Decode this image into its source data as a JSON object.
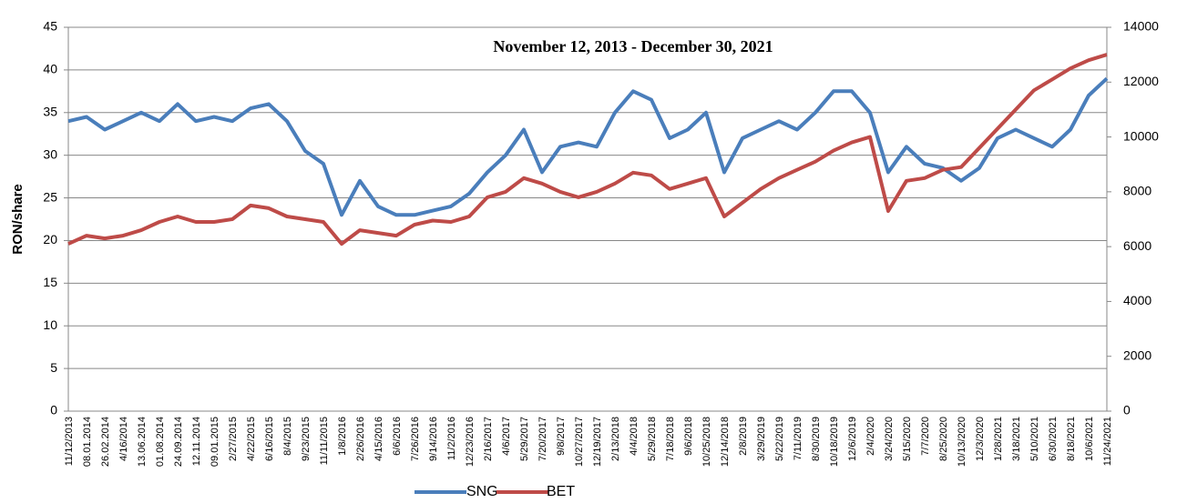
{
  "chart_data": {
    "type": "line",
    "title": "November 12, 2013 - December 30, 2021",
    "y_label": "RON/share",
    "categories": [
      "11/12/2013",
      "08.01.2014",
      "26.02.2014",
      "4/16/2014",
      "13.06.2014",
      "01.08.2014",
      "24.09.2014",
      "12.11.2014",
      "09.01.2015",
      "2/27/2015",
      "4/22/2015",
      "6/16/2015",
      "8/4/2015",
      "9/23/2015",
      "11/11/2015",
      "1/8/2016",
      "2/26/2016",
      "4/15/2016",
      "6/6/2016",
      "7/26/2016",
      "9/14/2016",
      "11/2/2016",
      "12/23/2016",
      "2/16/2017",
      "4/6/2017",
      "5/29/2017",
      "7/20/2017",
      "9/8/2017",
      "10/27/2017",
      "12/19/2017",
      "2/13/2018",
      "4/4/2018",
      "5/29/2018",
      "7/18/2018",
      "9/6/2018",
      "10/25/2018",
      "12/14/2018",
      "2/8/2019",
      "3/29/2019",
      "5/22/2019",
      "7/11/2019",
      "8/30/2019",
      "10/18/2019",
      "12/6/2019",
      "2/4/2020",
      "3/24/2020",
      "5/15/2020",
      "7/7/2020",
      "8/25/2020",
      "10/13/2020",
      "12/3/2020",
      "1/28/2021",
      "3/18/2021",
      "5/10/2021",
      "6/30/2021",
      "8/18/2021",
      "10/6/2021",
      "11/24/2021"
    ],
    "series": [
      {
        "name": "SNG",
        "color": "#4a7ebb",
        "values": [
          34,
          34.5,
          33,
          34,
          35,
          34,
          36,
          34,
          34.5,
          34,
          35.5,
          36,
          34,
          30.5,
          29,
          23,
          27,
          24,
          23,
          23,
          23.5,
          24,
          25.5,
          28,
          30,
          33,
          28,
          31,
          31.5,
          31,
          35,
          37.5,
          36.5,
          32,
          33,
          35,
          28,
          32,
          33,
          34,
          33,
          35,
          37.5,
          37.5,
          35,
          28,
          31,
          29,
          28.5,
          27,
          28.5,
          32,
          33,
          32,
          31,
          33,
          37,
          39
        ]
      },
      {
        "name": "BET",
        "color": "#be4b48",
        "axis": "y2",
        "values": [
          6100,
          6400,
          6300,
          6400,
          6600,
          6900,
          7100,
          6900,
          6900,
          7000,
          7500,
          7400,
          7100,
          7000,
          6900,
          6100,
          6600,
          6500,
          6400,
          6800,
          6950,
          6900,
          7100,
          7800,
          8000,
          8500,
          8300,
          8000,
          7800,
          8000,
          8300,
          8700,
          8600,
          8100,
          8300,
          8500,
          7100,
          7600,
          8100,
          8500,
          8800,
          9100,
          9500,
          9800,
          10000,
          7300,
          8400,
          8500,
          8800,
          8900,
          9600,
          10300,
          11000,
          11700,
          12100,
          12500,
          12800,
          13000
        ]
      }
    ],
    "ylim": [
      0,
      45
    ],
    "yticks": [
      0,
      5,
      10,
      15,
      20,
      25,
      30,
      35,
      40,
      45
    ],
    "y2lim": [
      0,
      14000
    ],
    "y2ticks": [
      0,
      2000,
      4000,
      6000,
      8000,
      10000,
      12000,
      14000
    ],
    "grid": true,
    "legend": "bottom"
  }
}
